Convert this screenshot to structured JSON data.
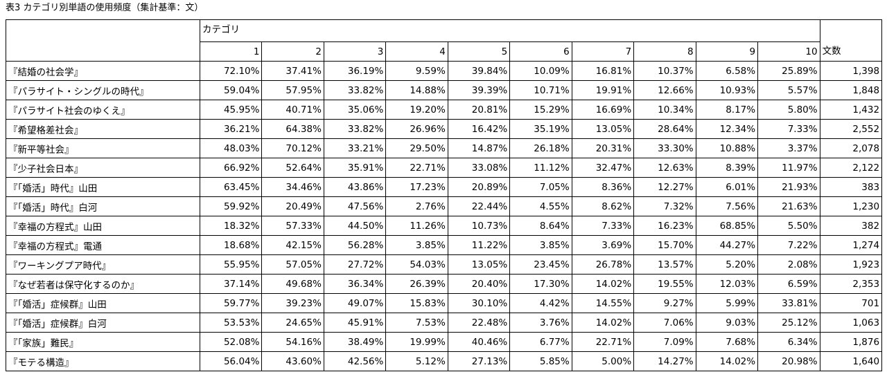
{
  "caption": "表3 カテゴリ別単語の使用頻度（集計基準：文）",
  "table": {
    "header": {
      "category": "カテゴリ",
      "columns": [
        "1",
        "2",
        "3",
        "4",
        "5",
        "6",
        "7",
        "8",
        "9",
        "10"
      ],
      "count": "文数"
    },
    "rows": [
      [
        "『結婚の社会学』",
        "72.10%",
        "37.41%",
        "36.19%",
        "9.59%",
        "39.84%",
        "10.09%",
        "16.81%",
        "10.37%",
        "6.58%",
        "25.89%",
        "1,398"
      ],
      [
        "『パラサイト・シングルの時代』",
        "59.04%",
        "57.95%",
        "33.82%",
        "14.88%",
        "39.39%",
        "10.71%",
        "19.91%",
        "12.66%",
        "10.93%",
        "5.57%",
        "1,848"
      ],
      [
        "『パラサイト社会のゆくえ』",
        "45.95%",
        "40.71%",
        "35.06%",
        "19.20%",
        "20.81%",
        "15.29%",
        "16.69%",
        "10.34%",
        "8.17%",
        "5.80%",
        "1,432"
      ],
      [
        "『希望格差社会』",
        "36.21%",
        "64.38%",
        "33.82%",
        "26.96%",
        "16.42%",
        "35.19%",
        "13.05%",
        "28.64%",
        "12.34%",
        "7.33%",
        "2,552"
      ],
      [
        "『新平等社会』",
        "48.03%",
        "70.12%",
        "33.21%",
        "29.50%",
        "14.87%",
        "26.18%",
        "20.31%",
        "33.30%",
        "10.88%",
        "3.37%",
        "2,078"
      ],
      [
        "『少子社会日本』",
        "66.92%",
        "52.64%",
        "35.91%",
        "22.71%",
        "33.08%",
        "11.12%",
        "32.47%",
        "12.63%",
        "8.39%",
        "11.97%",
        "2,122"
      ],
      [
        "『「婚活」時代』山田",
        "63.45%",
        "34.46%",
        "43.86%",
        "17.23%",
        "20.89%",
        "7.05%",
        "8.36%",
        "12.27%",
        "6.01%",
        "21.93%",
        "383"
      ],
      [
        "『「婚活」時代』白河",
        "59.92%",
        "20.49%",
        "47.56%",
        "2.76%",
        "22.44%",
        "4.55%",
        "8.62%",
        "7.32%",
        "7.56%",
        "21.63%",
        "1,230"
      ],
      [
        "『幸福の方程式』山田",
        "18.32%",
        "57.33%",
        "44.50%",
        "11.26%",
        "10.73%",
        "8.64%",
        "7.33%",
        "16.23%",
        "68.85%",
        "5.50%",
        "382"
      ],
      [
        "『幸福の方程式』電通",
        "18.68%",
        "42.15%",
        "56.28%",
        "3.85%",
        "11.22%",
        "3.85%",
        "3.69%",
        "15.70%",
        "44.27%",
        "7.22%",
        "1,274"
      ],
      [
        "『ワーキングプア時代』",
        "55.95%",
        "57.05%",
        "27.72%",
        "54.03%",
        "13.05%",
        "23.45%",
        "26.78%",
        "13.57%",
        "5.20%",
        "2.08%",
        "1,923"
      ],
      [
        "『なぜ若者は保守化するのか』",
        "37.14%",
        "49.68%",
        "36.34%",
        "26.39%",
        "20.40%",
        "17.30%",
        "14.02%",
        "19.55%",
        "12.03%",
        "6.59%",
        "2,353"
      ],
      [
        "『「婚活」症候群』山田",
        "59.77%",
        "39.23%",
        "49.07%",
        "15.83%",
        "30.10%",
        "4.42%",
        "14.55%",
        "9.27%",
        "5.99%",
        "33.81%",
        "701"
      ],
      [
        "『「婚活」症候群』白河",
        "53.53%",
        "24.65%",
        "45.91%",
        "7.53%",
        "22.48%",
        "3.76%",
        "14.02%",
        "7.06%",
        "9.03%",
        "25.12%",
        "1,063"
      ],
      [
        "『「家族」難民』",
        "52.08%",
        "54.16%",
        "38.49%",
        "19.99%",
        "40.46%",
        "6.77%",
        "22.71%",
        "7.09%",
        "7.68%",
        "6.34%",
        "1,876"
      ],
      [
        "『モテる構造』",
        "56.04%",
        "43.60%",
        "42.56%",
        "5.12%",
        "27.13%",
        "5.85%",
        "5.00%",
        "14.27%",
        "14.02%",
        "20.98%",
        "1,640"
      ]
    ]
  }
}
